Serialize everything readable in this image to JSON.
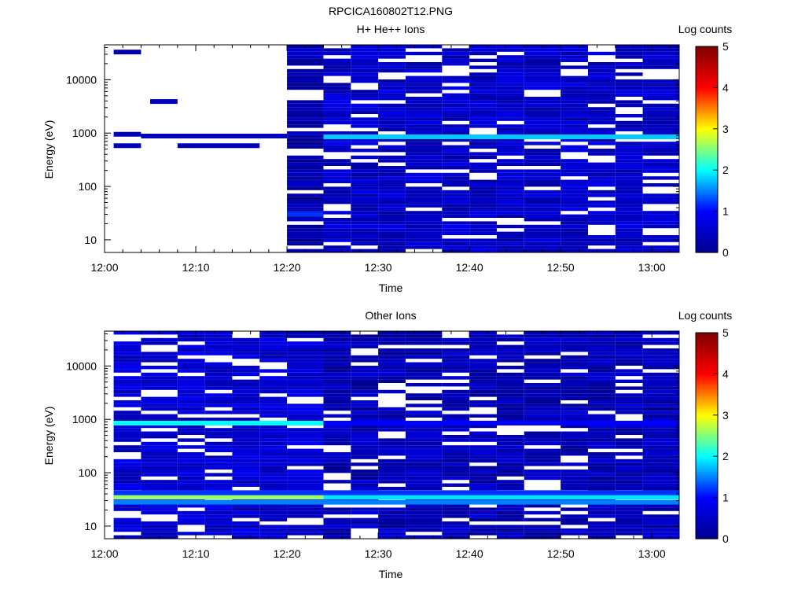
{
  "figure": {
    "title": "RPCICA160802T12.PNG"
  },
  "colorbar": {
    "label": "Log counts",
    "ticks": [
      "0",
      "1",
      "2",
      "3",
      "4",
      "5"
    ],
    "range": [
      0,
      5
    ],
    "colormap": [
      "#00008f",
      "#0000ff",
      "#00ffff",
      "#ffff00",
      "#ff0000",
      "#800000"
    ]
  },
  "panels": [
    {
      "title": "H+ He++ Ions",
      "ylabel": "Energy (eV)",
      "xlabel": "Time"
    },
    {
      "title": "Other Ions",
      "ylabel": "Energy (eV)",
      "xlabel": "Time"
    }
  ],
  "axes": {
    "x_ticks": [
      "12:00",
      "12:10",
      "12:20",
      "12:30",
      "12:40",
      "12:50",
      "13:00"
    ],
    "y_ticks": [
      "10",
      "100",
      "1000",
      "10000"
    ]
  },
  "chart_data": [
    {
      "type": "heatmap",
      "title": "H+ He++ Ions",
      "xlabel": "Time",
      "ylabel": "Energy (eV)",
      "y_scale": "log",
      "xlim": [
        "12:00",
        "13:03"
      ],
      "ylim": [
        5.8,
        45000
      ],
      "x_ticks": [
        "12:00",
        "12:10",
        "12:20",
        "12:30",
        "12:40",
        "12:50",
        "13:00"
      ],
      "y_ticks": [
        10,
        100,
        1000,
        10000
      ],
      "z_label": "Log counts",
      "z_range": [
        0,
        5
      ],
      "time_bins": [
        "12:01",
        "12:04",
        "12:08",
        "12:11",
        "12:14",
        "12:17",
        "12:20",
        "12:24",
        "12:27",
        "12:30",
        "12:33",
        "12:37",
        "12:40",
        "12:43",
        "12:46",
        "12:50",
        "12:53",
        "12:56",
        "12:59"
      ],
      "active_bins": [
        {
          "from": "12:24",
          "to": "13:03",
          "background_level": 0.5
        },
        {
          "from": "12:20",
          "to": "12:24",
          "background_level": 0.25
        }
      ],
      "features": [
        {
          "energy_eV": 850,
          "from": "12:24",
          "to": "13:03",
          "level": 1.8
        },
        {
          "energy_eV": 33000,
          "from": "12:01",
          "to": "12:04",
          "level": 0.3
        },
        {
          "energy_eV": 3900,
          "from": "12:05",
          "to": "12:08",
          "level": 0.3
        },
        {
          "energy_eV": 950,
          "from": "12:01",
          "to": "12:04",
          "level": 0.3
        },
        {
          "energy_eV": 880,
          "from": "12:04",
          "to": "12:20",
          "level": 0.4
        },
        {
          "energy_eV": 580,
          "from": "12:01",
          "to": "12:04",
          "level": 0.3
        },
        {
          "energy_eV": 580,
          "from": "12:08",
          "to": "12:17",
          "level": 0.3
        },
        {
          "energy_eV": 30,
          "from": "12:20",
          "to": "12:24",
          "level": 1.2
        }
      ]
    },
    {
      "type": "heatmap",
      "title": "Other Ions",
      "xlabel": "Time",
      "ylabel": "Energy (eV)",
      "y_scale": "log",
      "xlim": [
        "12:00",
        "13:03"
      ],
      "ylim": [
        5.8,
        45000
      ],
      "x_ticks": [
        "12:00",
        "12:10",
        "12:20",
        "12:30",
        "12:40",
        "12:50",
        "13:00"
      ],
      "y_ticks": [
        10,
        100,
        1000,
        10000
      ],
      "z_label": "Log counts",
      "z_range": [
        0,
        5
      ],
      "time_bins": [
        "12:01",
        "12:04",
        "12:08",
        "12:11",
        "12:14",
        "12:17",
        "12:20",
        "12:24",
        "12:27",
        "12:30",
        "12:33",
        "12:37",
        "12:40",
        "12:43",
        "12:46",
        "12:50",
        "12:53",
        "12:56",
        "12:59"
      ],
      "active_bins": [
        {
          "from": "12:01",
          "to": "12:24",
          "background_level": 0.6
        },
        {
          "from": "12:24",
          "to": "13:03",
          "background_level": 0.35
        }
      ],
      "features": [
        {
          "energy_eV": 850,
          "from": "12:01",
          "to": "12:24",
          "level": 2.0
        },
        {
          "energy_eV": 850,
          "from": "12:24",
          "to": "13:03",
          "level": 1.0
        },
        {
          "energy_eV": 35,
          "from": "12:01",
          "to": "12:24",
          "level": 2.6
        },
        {
          "energy_eV": 35,
          "from": "12:24",
          "to": "13:03",
          "level": 1.9
        },
        {
          "energy_eV": 42,
          "from": "12:01",
          "to": "13:03",
          "level": 1.2
        },
        {
          "energy_eV": 28,
          "from": "12:01",
          "to": "13:03",
          "level": 1.5
        }
      ]
    }
  ]
}
